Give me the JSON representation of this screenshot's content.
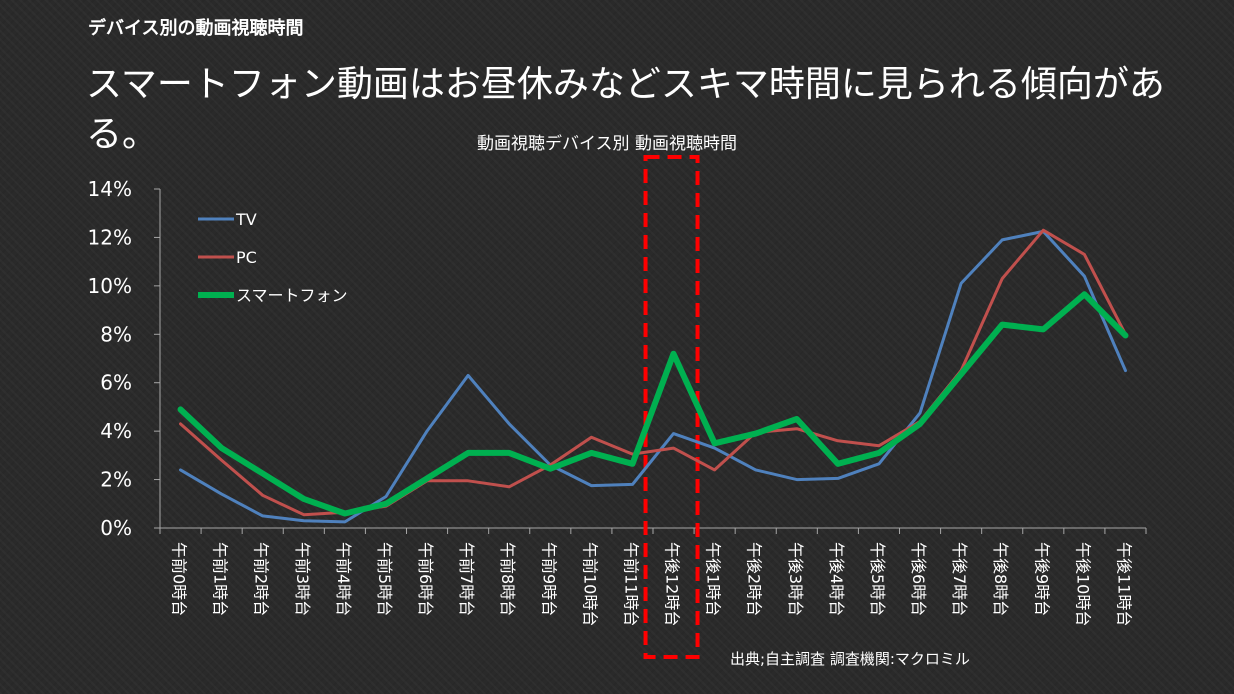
{
  "slide": {
    "label": "デバイス別の動画視聴時間",
    "headline": "スマートフォン動画はお昼休みなどスキマ時間に見られる傾向がある。",
    "source": "出典;自主調査 調査機関:マクロミル"
  },
  "chart_data": {
    "type": "line",
    "title": "動画視聴デバイス別  動画視聴時間",
    "categories": [
      "午前0時台",
      "午前1時台",
      "午前2時台",
      "午前3時台",
      "午前4時台",
      "午前5時台",
      "午前6時台",
      "午前7時台",
      "午前8時台",
      "午前9時台",
      "午前10時台",
      "午前11時台",
      "午後12時台",
      "午後1時台",
      "午後2時台",
      "午後3時台",
      "午後4時台",
      "午後5時台",
      "午後6時台",
      "午後7時台",
      "午後8時台",
      "午後9時台",
      "午後10時台",
      "午後11時台"
    ],
    "yticks": [
      "0%",
      "2%",
      "4%",
      "6%",
      "8%",
      "10%",
      "12%",
      "14%"
    ],
    "ylim": [
      0,
      14
    ],
    "legend_position": "top-left",
    "highlight": {
      "category": "午後12時台",
      "style": "red dashed box"
    },
    "series": [
      {
        "name": "TV",
        "color": "#4f81bd",
        "values": [
          2.4,
          1.4,
          0.5,
          0.3,
          0.25,
          1.3,
          4.0,
          6.3,
          4.3,
          2.6,
          1.75,
          1.8,
          3.9,
          3.3,
          2.4,
          2.0,
          2.05,
          2.65,
          4.75,
          10.1,
          11.9,
          12.25,
          10.4,
          6.5
        ]
      },
      {
        "name": "PC",
        "color": "#c0504d",
        "values": [
          4.3,
          2.8,
          1.35,
          0.55,
          0.65,
          0.9,
          1.95,
          1.95,
          1.7,
          2.6,
          3.75,
          3.05,
          3.3,
          2.4,
          3.95,
          4.1,
          3.6,
          3.4,
          4.4,
          6.5,
          10.3,
          12.3,
          11.3,
          8.0
        ]
      },
      {
        "name": "スマートフォン",
        "color": "#00b050",
        "values": [
          4.9,
          3.3,
          2.25,
          1.2,
          0.6,
          1.0,
          2.05,
          3.1,
          3.1,
          2.45,
          3.1,
          2.65,
          7.2,
          3.5,
          3.9,
          4.5,
          2.65,
          3.1,
          4.3,
          6.35,
          8.4,
          8.2,
          9.65,
          7.95
        ]
      }
    ]
  }
}
